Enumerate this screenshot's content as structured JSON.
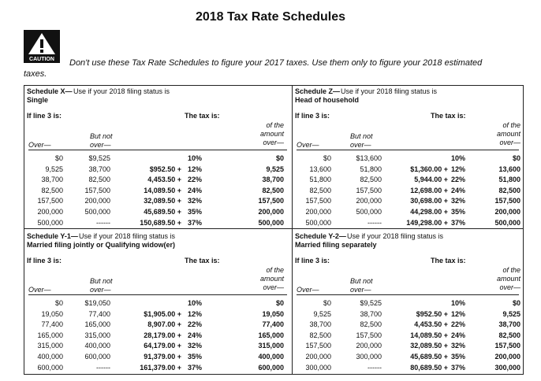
{
  "title": "2018 Tax Rate Schedules",
  "caution": {
    "label": "CAUTION",
    "text": "Don't use these Tax Rate Schedules to figure your 2017 taxes. Use them only to figure your 2018 estimated",
    "text_end": "taxes."
  },
  "columns": {
    "if_line": "If line 3 is:",
    "tax_is": "The tax is:",
    "over": "Over—",
    "but_not": [
      "But not",
      "over—"
    ],
    "of_amount": [
      "of the",
      "amount",
      "over—"
    ]
  },
  "schedules": [
    {
      "label": "Schedule X—",
      "heading": "Use if your 2018 filing status is",
      "status": "Single",
      "rows": [
        {
          "over": "$0",
          "but_not": "$9,525",
          "rate": "10%",
          "amount_over": "$0"
        },
        {
          "over": "9,525",
          "but_not": "38,700",
          "base": "$952.50 +",
          "rate": "12%",
          "amount_over": "9,525"
        },
        {
          "over": "38,700",
          "but_not": "82,500",
          "base": "4,453.50 +",
          "rate": "22%",
          "amount_over": "38,700"
        },
        {
          "over": "82,500",
          "but_not": "157,500",
          "base": "14,089.50 +",
          "rate": "24%",
          "amount_over": "82,500"
        },
        {
          "over": "157,500",
          "but_not": "200,000",
          "base": "32,089.50 +",
          "rate": "32%",
          "amount_over": "157,500"
        },
        {
          "over": "200,000",
          "but_not": "500,000",
          "base": "45,689.50 +",
          "rate": "35%",
          "amount_over": "200,000"
        },
        {
          "over": "500,000",
          "but_not": "------",
          "base": "150,689.50 +",
          "rate": "37%",
          "amount_over": "500,000"
        }
      ]
    },
    {
      "label": "Schedule Z—",
      "heading": "Use if your 2018 filing status is",
      "status": "Head of household",
      "rows": [
        {
          "over": "$0",
          "but_not": "$13,600",
          "rate": "10%",
          "amount_over": "$0"
        },
        {
          "over": "13,600",
          "but_not": "51,800",
          "base": "$1,360.00 +",
          "rate": "12%",
          "amount_over": "13,600"
        },
        {
          "over": "51,800",
          "but_not": "82,500",
          "base": "5,944.00 +",
          "rate": "22%",
          "amount_over": "51,800"
        },
        {
          "over": "82,500",
          "but_not": "157,500",
          "base": "12,698.00 +",
          "rate": "24%",
          "amount_over": "82,500"
        },
        {
          "over": "157,500",
          "but_not": "200,000",
          "base": "30,698.00 +",
          "rate": "32%",
          "amount_over": "157,500"
        },
        {
          "over": "200,000",
          "but_not": "500,000",
          "base": "44,298.00 +",
          "rate": "35%",
          "amount_over": "200,000"
        },
        {
          "over": "500,000",
          "but_not": "------",
          "base": "149,298.00 +",
          "rate": "37%",
          "amount_over": "500,000"
        }
      ]
    },
    {
      "label": "Schedule Y-1—",
      "heading": "Use if your 2018 filing status is",
      "status": "Married filing jointly or Qualifying widow(er)",
      "rows": [
        {
          "over": "$0",
          "but_not": "$19,050",
          "rate": "10%",
          "amount_over": "$0"
        },
        {
          "over": "19,050",
          "but_not": "77,400",
          "base": "$1,905.00 +",
          "rate": "12%",
          "amount_over": "19,050"
        },
        {
          "over": "77,400",
          "but_not": "165,000",
          "base": "8,907.00 +",
          "rate": "22%",
          "amount_over": "77,400"
        },
        {
          "over": "165,000",
          "but_not": "315,000",
          "base": "28,179.00 +",
          "rate": "24%",
          "amount_over": "165,000"
        },
        {
          "over": "315,000",
          "but_not": "400,000",
          "base": "64,179.00 +",
          "rate": "32%",
          "amount_over": "315,000"
        },
        {
          "over": "400,000",
          "but_not": "600,000",
          "base": "91,379.00 +",
          "rate": "35%",
          "amount_over": "400,000"
        },
        {
          "over": "600,000",
          "but_not": "------",
          "base": "161,379.00 +",
          "rate": "37%",
          "amount_over": "600,000"
        }
      ]
    },
    {
      "label": "Schedule Y-2—",
      "heading": "Use if your 2018 filing status is",
      "status": "Married filing separately",
      "rows": [
        {
          "over": "$0",
          "but_not": "$9,525",
          "rate": "10%",
          "amount_over": "$0"
        },
        {
          "over": "9,525",
          "but_not": "38,700",
          "base": "$952.50 +",
          "rate": "12%",
          "amount_over": "9,525"
        },
        {
          "over": "38,700",
          "but_not": "82,500",
          "base": "4,453.50 +",
          "rate": "22%",
          "amount_over": "38,700"
        },
        {
          "over": "82,500",
          "but_not": "157,500",
          "base": "14,089.50 +",
          "rate": "24%",
          "amount_over": "82,500"
        },
        {
          "over": "157,500",
          "but_not": "200,000",
          "base": "32,089.50 +",
          "rate": "32%",
          "amount_over": "157,500"
        },
        {
          "over": "200,000",
          "but_not": "300,000",
          "base": "45,689.50 +",
          "rate": "35%",
          "amount_over": "200,000"
        },
        {
          "over": "300,000",
          "but_not": "------",
          "base": "80,689.50 +",
          "rate": "37%",
          "amount_over": "300,000"
        }
      ]
    }
  ]
}
